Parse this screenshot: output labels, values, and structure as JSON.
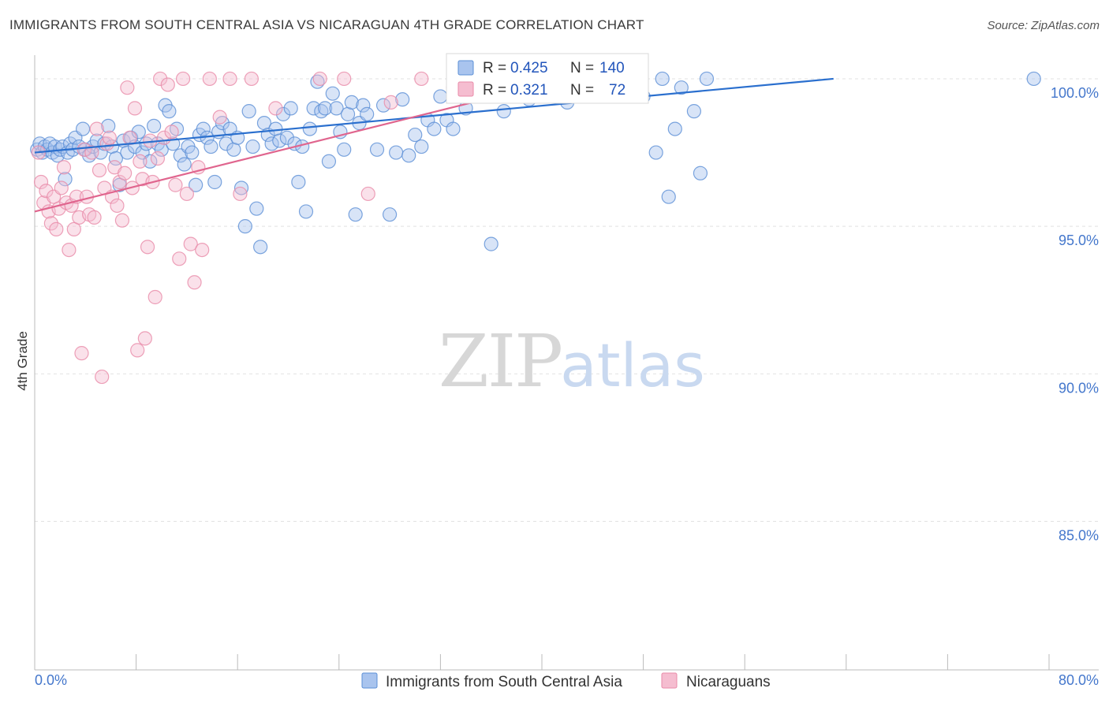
{
  "header": {
    "title": "IMMIGRANTS FROM SOUTH CENTRAL ASIA VS NICARAGUAN 4TH GRADE CORRELATION CHART",
    "source": "Source: ZipAtlas.com"
  },
  "watermark": {
    "zip": "ZIP",
    "atlas": "atlas"
  },
  "colors": {
    "blue": "#5b8fd6",
    "blue_fill": "#a9c4ee",
    "blue_line": "#2a6fce",
    "pink": "#e98aa8",
    "pink_fill": "#f5bdd0",
    "pink_line": "#e0658e",
    "tick": "#4477cc",
    "grid": "#e2e2e2"
  },
  "chart_data": {
    "type": "scatter",
    "title": "IMMIGRANTS FROM SOUTH CENTRAL ASIA VS NICARAGUAN 4TH GRADE CORRELATION CHART",
    "xlabel": "",
    "ylabel": "4th Grade",
    "xlim": [
      0,
      80
    ],
    "ylim": [
      80.5,
      100.8
    ],
    "y_ticks": [
      100,
      95,
      90,
      85
    ],
    "y_tick_labels": [
      "100.0%",
      "95.0%",
      "90.0%",
      "85.0%"
    ],
    "x_tick_labels": [
      "0.0%",
      "80.0%"
    ],
    "x_minor_ticks": [
      8,
      16,
      24,
      32,
      40,
      48,
      56,
      64,
      72,
      80
    ],
    "grid": true,
    "series": [
      {
        "name": "Immigrants from South Central Asia",
        "color": "#5b8fd6",
        "R": "0.425",
        "N": "140",
        "trend": {
          "x": [
            0,
            63
          ],
          "y": [
            97.5,
            100
          ]
        },
        "points": [
          [
            0.2,
            97.6
          ],
          [
            0.4,
            97.8
          ],
          [
            0.6,
            97.5
          ],
          [
            0.8,
            97.7
          ],
          [
            1.0,
            97.6
          ],
          [
            1.2,
            97.8
          ],
          [
            1.4,
            97.5
          ],
          [
            1.6,
            97.7
          ],
          [
            1.8,
            97.4
          ],
          [
            2.0,
            97.6
          ],
          [
            2.2,
            97.7
          ],
          [
            2.4,
            96.6
          ],
          [
            2.6,
            97.5
          ],
          [
            2.8,
            97.8
          ],
          [
            3.0,
            97.6
          ],
          [
            3.2,
            98.0
          ],
          [
            3.5,
            97.7
          ],
          [
            3.8,
            98.3
          ],
          [
            4.0,
            97.6
          ],
          [
            4.3,
            97.4
          ],
          [
            4.6,
            97.7
          ],
          [
            4.9,
            97.9
          ],
          [
            5.2,
            97.5
          ],
          [
            5.5,
            97.8
          ],
          [
            5.8,
            98.4
          ],
          [
            6.1,
            97.7
          ],
          [
            6.4,
            97.3
          ],
          [
            6.7,
            96.4
          ],
          [
            7.0,
            97.9
          ],
          [
            7.3,
            97.5
          ],
          [
            7.6,
            98.0
          ],
          [
            7.9,
            97.7
          ],
          [
            8.2,
            98.2
          ],
          [
            8.5,
            97.5
          ],
          [
            8.8,
            97.8
          ],
          [
            9.1,
            97.2
          ],
          [
            9.4,
            98.4
          ],
          [
            9.7,
            97.8
          ],
          [
            10.0,
            97.6
          ],
          [
            10.3,
            99.1
          ],
          [
            10.6,
            98.9
          ],
          [
            10.9,
            97.8
          ],
          [
            11.2,
            98.3
          ],
          [
            11.5,
            97.4
          ],
          [
            11.8,
            97.1
          ],
          [
            12.1,
            97.7
          ],
          [
            12.4,
            97.5
          ],
          [
            12.7,
            96.4
          ],
          [
            13.0,
            98.1
          ],
          [
            13.3,
            98.3
          ],
          [
            13.6,
            98.0
          ],
          [
            13.9,
            97.7
          ],
          [
            14.2,
            96.5
          ],
          [
            14.5,
            98.2
          ],
          [
            14.8,
            98.5
          ],
          [
            15.1,
            97.8
          ],
          [
            15.4,
            98.3
          ],
          [
            15.7,
            97.6
          ],
          [
            16.0,
            98.0
          ],
          [
            16.3,
            96.3
          ],
          [
            16.6,
            95.0
          ],
          [
            16.9,
            98.9
          ],
          [
            17.2,
            97.7
          ],
          [
            17.5,
            95.6
          ],
          [
            17.8,
            94.3
          ],
          [
            18.1,
            98.5
          ],
          [
            18.4,
            98.1
          ],
          [
            18.7,
            97.8
          ],
          [
            19.0,
            98.3
          ],
          [
            19.3,
            97.9
          ],
          [
            19.6,
            98.8
          ],
          [
            19.9,
            98.0
          ],
          [
            20.2,
            99.0
          ],
          [
            20.5,
            97.8
          ],
          [
            20.8,
            96.5
          ],
          [
            21.1,
            97.7
          ],
          [
            21.4,
            95.5
          ],
          [
            21.7,
            98.3
          ],
          [
            22.0,
            99.0
          ],
          [
            22.3,
            99.9
          ],
          [
            22.6,
            98.9
          ],
          [
            22.9,
            99.0
          ],
          [
            23.2,
            97.2
          ],
          [
            23.5,
            99.5
          ],
          [
            23.8,
            99.0
          ],
          [
            24.1,
            98.2
          ],
          [
            24.4,
            97.6
          ],
          [
            24.7,
            98.8
          ],
          [
            25.0,
            99.2
          ],
          [
            25.3,
            95.4
          ],
          [
            25.6,
            98.5
          ],
          [
            25.9,
            99.1
          ],
          [
            26.2,
            98.8
          ],
          [
            27.0,
            97.6
          ],
          [
            27.5,
            99.1
          ],
          [
            28.0,
            95.4
          ],
          [
            28.5,
            97.5
          ],
          [
            29.0,
            99.3
          ],
          [
            29.5,
            97.4
          ],
          [
            30.0,
            98.1
          ],
          [
            30.5,
            97.7
          ],
          [
            31.0,
            98.6
          ],
          [
            31.5,
            98.3
          ],
          [
            32.0,
            99.4
          ],
          [
            32.5,
            98.6
          ],
          [
            33.0,
            98.3
          ],
          [
            33.5,
            99.6
          ],
          [
            34.0,
            99.0
          ],
          [
            34.5,
            99.4
          ],
          [
            35.0,
            99.7
          ],
          [
            35.5,
            100.0
          ],
          [
            36.0,
            94.4
          ],
          [
            36.5,
            99.6
          ],
          [
            37.0,
            98.9
          ],
          [
            37.5,
            100.0
          ],
          [
            38.0,
            99.5
          ],
          [
            38.5,
            99.8
          ],
          [
            39.0,
            99.3
          ],
          [
            39.5,
            100.0
          ],
          [
            40.0,
            99.7
          ],
          [
            40.5,
            100.0
          ],
          [
            41.0,
            99.6
          ],
          [
            41.5,
            99.8
          ],
          [
            42.0,
            99.2
          ],
          [
            42.5,
            100.0
          ],
          [
            43.0,
            100.0
          ],
          [
            44.0,
            99.9
          ],
          [
            45.0,
            99.7
          ],
          [
            46.0,
            100.0
          ],
          [
            47.0,
            99.6
          ],
          [
            48.0,
            99.4
          ],
          [
            49.0,
            97.5
          ],
          [
            49.5,
            100.0
          ],
          [
            50.0,
            96.0
          ],
          [
            50.5,
            98.3
          ],
          [
            51.0,
            99.7
          ],
          [
            52.0,
            98.9
          ],
          [
            52.5,
            96.8
          ],
          [
            53.0,
            100.0
          ],
          [
            78.8,
            100.0
          ]
        ]
      },
      {
        "name": "Nicaraguans",
        "color": "#e98aa8",
        "R": "0.321",
        "N": "72",
        "trend": {
          "x": [
            0,
            42
          ],
          "y": [
            95.5,
            100
          ]
        },
        "points": [
          [
            0.3,
            97.5
          ],
          [
            0.5,
            96.5
          ],
          [
            0.7,
            95.8
          ],
          [
            0.9,
            96.2
          ],
          [
            1.1,
            95.5
          ],
          [
            1.3,
            95.1
          ],
          [
            1.5,
            96.0
          ],
          [
            1.7,
            94.9
          ],
          [
            1.9,
            95.6
          ],
          [
            2.1,
            96.3
          ],
          [
            2.3,
            97.0
          ],
          [
            2.5,
            95.8
          ],
          [
            2.7,
            94.2
          ],
          [
            2.9,
            95.7
          ],
          [
            3.1,
            94.9
          ],
          [
            3.3,
            96.0
          ],
          [
            3.5,
            95.3
          ],
          [
            3.7,
            90.7
          ],
          [
            3.9,
            97.6
          ],
          [
            4.1,
            96.0
          ],
          [
            4.3,
            95.4
          ],
          [
            4.5,
            97.5
          ],
          [
            4.7,
            95.3
          ],
          [
            4.9,
            98.3
          ],
          [
            5.1,
            96.9
          ],
          [
            5.3,
            89.9
          ],
          [
            5.5,
            96.3
          ],
          [
            5.7,
            97.8
          ],
          [
            5.9,
            98.0
          ],
          [
            6.1,
            96.0
          ],
          [
            6.3,
            97.0
          ],
          [
            6.5,
            95.7
          ],
          [
            6.7,
            96.5
          ],
          [
            6.9,
            95.2
          ],
          [
            7.1,
            96.8
          ],
          [
            7.3,
            99.7
          ],
          [
            7.5,
            98.0
          ],
          [
            7.7,
            96.3
          ],
          [
            7.9,
            99.0
          ],
          [
            8.1,
            90.8
          ],
          [
            8.3,
            97.2
          ],
          [
            8.5,
            96.6
          ],
          [
            8.7,
            91.2
          ],
          [
            8.9,
            94.3
          ],
          [
            9.1,
            97.9
          ],
          [
            9.3,
            96.5
          ],
          [
            9.5,
            92.6
          ],
          [
            9.7,
            97.3
          ],
          [
            9.9,
            100.0
          ],
          [
            10.2,
            98.0
          ],
          [
            10.5,
            99.8
          ],
          [
            10.8,
            98.2
          ],
          [
            11.1,
            96.4
          ],
          [
            11.4,
            93.9
          ],
          [
            11.7,
            100.0
          ],
          [
            12.0,
            96.1
          ],
          [
            12.3,
            94.4
          ],
          [
            12.6,
            93.1
          ],
          [
            12.9,
            97.0
          ],
          [
            13.2,
            94.2
          ],
          [
            13.8,
            100.0
          ],
          [
            14.6,
            98.7
          ],
          [
            15.4,
            100.0
          ],
          [
            16.2,
            96.1
          ],
          [
            17.1,
            100.0
          ],
          [
            19.0,
            99.0
          ],
          [
            22.5,
            100.0
          ],
          [
            24.4,
            100.0
          ],
          [
            26.3,
            96.1
          ],
          [
            28.1,
            99.2
          ],
          [
            30.5,
            100.0
          ],
          [
            33.0,
            99.7
          ]
        ]
      }
    ]
  },
  "legend": {
    "r_label": "R =",
    "n_label": "N =",
    "series_a_r": "0.425",
    "series_a_n": "140",
    "series_b_r": "0.321",
    "series_b_n": "72"
  },
  "bottom_legend": {
    "series_a": "Immigrants from South Central Asia",
    "series_b": "Nicaraguans"
  }
}
